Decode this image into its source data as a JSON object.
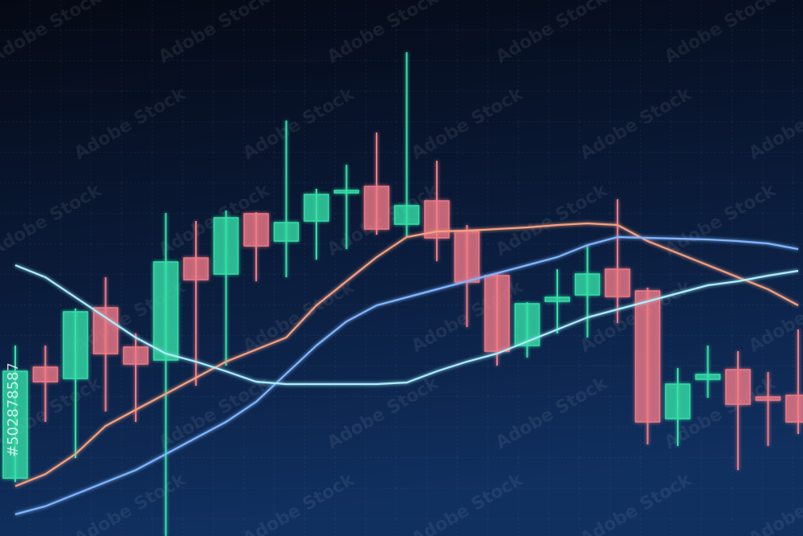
{
  "chart_data": {
    "type": "candlestick",
    "categories": [
      null,
      null,
      null,
      null,
      null,
      null,
      null,
      null,
      null,
      null,
      null,
      null,
      null,
      null,
      null,
      null,
      null,
      null,
      null,
      null,
      null,
      null,
      null,
      null,
      null,
      null,
      null
    ],
    "open": [
      72,
      210,
      196,
      284,
      235,
      219,
      346,
      326,
      401,
      367,
      392,
      427,
      435,
      388,
      417,
      379,
      324,
      237,
      292,
      300,
      332,
      305,
      146,
      195,
      207,
      173,
      175
    ],
    "high": [
      237,
      237,
      283,
      322,
      252,
      402,
      392,
      405,
      403,
      517,
      432,
      462,
      502,
      602,
      467,
      387,
      327,
      291,
      332,
      362,
      419,
      309,
      209,
      237,
      230,
      204,
      257
    ],
    "low": [
      67,
      142,
      97,
      155,
      142,
      0,
      187,
      212,
      317,
      322,
      344,
      357,
      375,
      372,
      342,
      260,
      212,
      222,
      252,
      247,
      265,
      114,
      112,
      172,
      82,
      112,
      127
    ],
    "close": [
      205,
      192,
      279,
      227,
      214,
      341,
      319,
      396,
      361,
      390,
      425,
      430,
      382,
      411,
      371,
      316,
      230,
      289,
      297,
      326,
      298,
      142,
      189,
      201,
      164,
      169,
      142
    ],
    "up_color": "#34e0a8",
    "down_color": "#f07a86",
    "series": [
      {
        "type": "line",
        "color": "#f5a080",
        "values": [
          62,
          77,
          102,
          137,
          157,
          177,
          197,
          217,
          232,
          247,
          287,
          317,
          347,
          372,
          379,
          380,
          382,
          384,
          387,
          389,
          387,
          367,
          352,
          337,
          322,
          307,
          287
        ]
      },
      {
        "type": "line",
        "color": "#7fb6ff",
        "values": [
          27,
          37,
          52,
          67,
          82,
          102,
          122,
          142,
          167,
          202,
          237,
          267,
          287,
          297,
          307,
          317,
          327,
          337,
          347,
          362,
          372,
          371,
          370,
          369,
          367,
          364,
          357
        ]
      },
      {
        "type": "line",
        "color": "#a8f0ff",
        "values": [
          337,
          322,
          297,
          272,
          247,
          227,
          217,
          205,
          192,
          189,
          189,
          189,
          189,
          191,
          205,
          217,
          227,
          242,
          257,
          272,
          282,
          292,
          302,
          312,
          317,
          324,
          330
        ]
      }
    ],
    "ylim": [
      0,
      667
    ],
    "grid": true
  },
  "watermark": {
    "text": "Adobe Stock",
    "id": "#502878587"
  }
}
